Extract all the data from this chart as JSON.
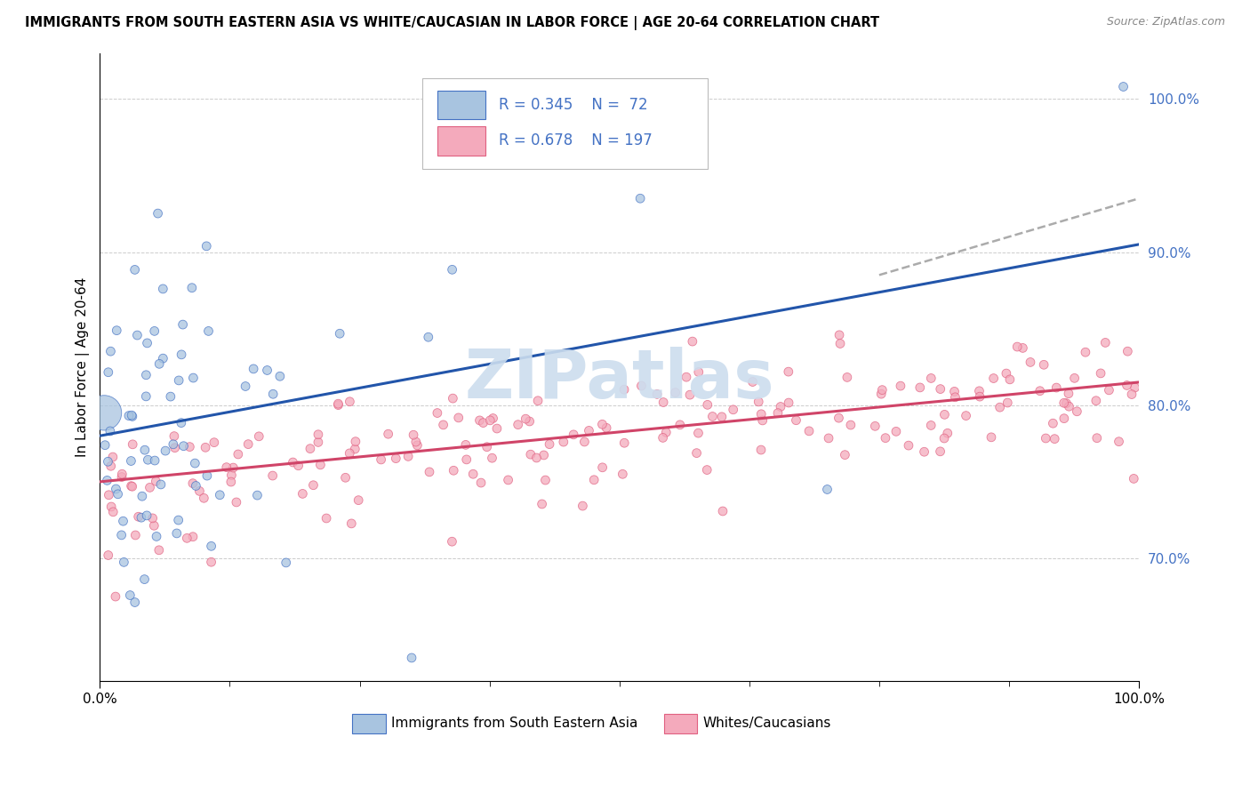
{
  "title": "IMMIGRANTS FROM SOUTH EASTERN ASIA VS WHITE/CAUCASIAN IN LABOR FORCE | AGE 20-64 CORRELATION CHART",
  "source": "Source: ZipAtlas.com",
  "ylabel": "In Labor Force | Age 20-64",
  "xlim": [
    0,
    100
  ],
  "ylim": [
    62,
    103
  ],
  "yticks": [
    70,
    80,
    90,
    100
  ],
  "ytick_labels": [
    "70.0%",
    "80.0%",
    "90.0%",
    "100.0%"
  ],
  "xtick_left": "0.0%",
  "xtick_right": "100.0%",
  "legend_label_blue": "Immigrants from South Eastern Asia",
  "legend_label_pink": "Whites/Caucasians",
  "R_blue": "0.345",
  "N_blue": "72",
  "R_pink": "0.678",
  "N_pink": "197",
  "blue_fill": "#A8C4E0",
  "blue_edge": "#4472C4",
  "blue_line": "#2255AA",
  "pink_fill": "#F4AABC",
  "pink_edge": "#E06080",
  "pink_line": "#D04468",
  "watermark": "ZIPatlas",
  "watermark_color": "#CCDDEE",
  "blue_trend_x0": 0,
  "blue_trend_x1": 100,
  "blue_trend_y0": 78.0,
  "blue_trend_y1": 90.5,
  "blue_dash_x0": 75,
  "blue_dash_x1": 100,
  "blue_dash_y0": 88.5,
  "blue_dash_y1": 93.5,
  "pink_trend_x0": 0,
  "pink_trend_x1": 100,
  "pink_trend_y0": 75.0,
  "pink_trend_y1": 81.5
}
